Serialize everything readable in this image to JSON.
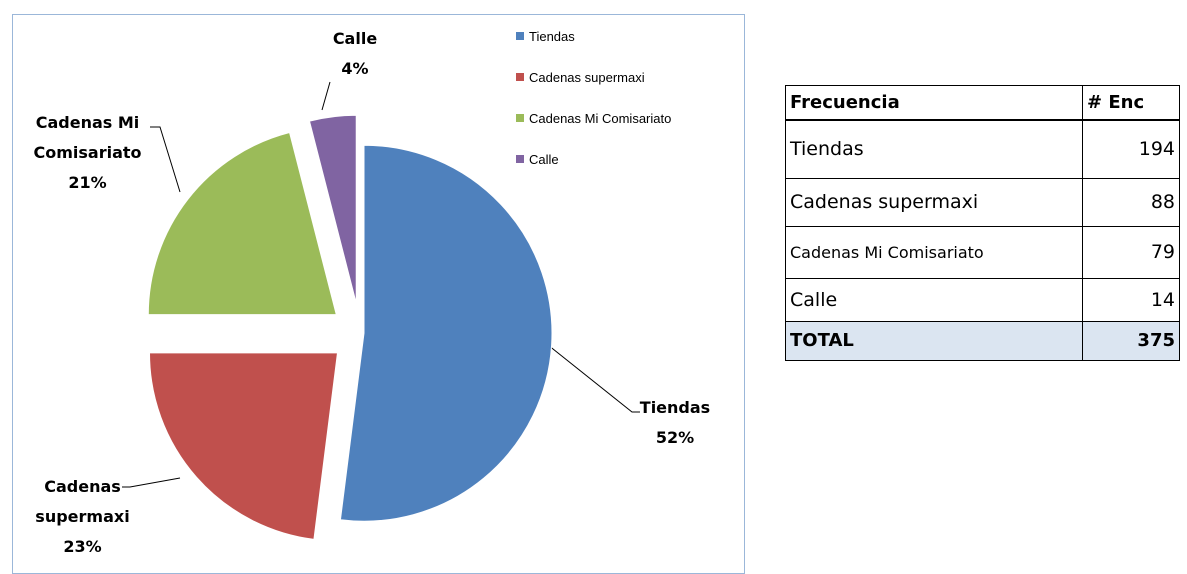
{
  "chart_data": {
    "type": "pie",
    "categories": [
      "Tiendas",
      "Cadenas supermaxi",
      "Cadenas Mi Comisariato",
      "Calle"
    ],
    "values": [
      52,
      23,
      21,
      4
    ],
    "value_labels": [
      "52%",
      "23%",
      "21%",
      "4%"
    ],
    "colors": [
      "#4f81bd",
      "#c0504d",
      "#9bbb59",
      "#8064a2"
    ],
    "legend": "right"
  },
  "table": {
    "header": [
      "Frecuencia",
      "# Enc"
    ],
    "rows": [
      [
        "Tiendas",
        "194"
      ],
      [
        "Cadenas supermaxi",
        "88"
      ],
      [
        "Cadenas Mi Comisariato",
        "79"
      ],
      [
        "Calle",
        "14"
      ]
    ],
    "total": [
      "TOTAL",
      "375"
    ]
  }
}
